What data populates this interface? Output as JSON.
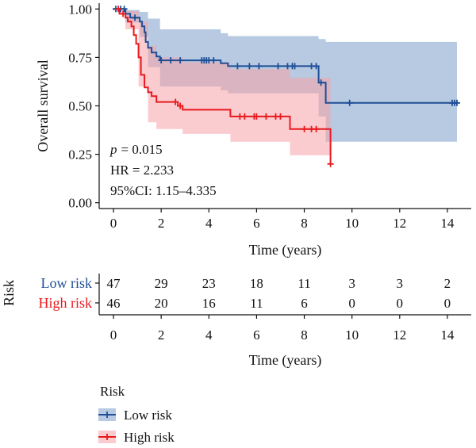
{
  "chart_data": {
    "type": "line",
    "subtype": "kaplan-meier",
    "title": "",
    "xlabel": "Time (years)",
    "ylabel": "Overall survival",
    "xlim": [
      -0.6,
      15
    ],
    "ylim": [
      -0.03,
      1.03
    ],
    "xticks": [
      0,
      2,
      4,
      6,
      8,
      10,
      12,
      14
    ],
    "yticks": [
      0.0,
      0.25,
      0.5,
      0.75,
      1.0
    ],
    "ytick_labels": [
      "0.00",
      "0.25",
      "0.50",
      "0.75",
      "1.00"
    ],
    "grid": false,
    "annotations": {
      "p_prefix": "p",
      "p_value": "= 0.015",
      "hr": "HR = 2.233",
      "ci": "95%CI: 1.15–4.335"
    },
    "series": [
      {
        "name": "Low risk",
        "color": "#1f4e96",
        "ci_color": "#7b9fc9",
        "steps": [
          [
            0,
            1.0
          ],
          [
            0.5,
            0.975
          ],
          [
            0.7,
            0.955
          ],
          [
            1.1,
            0.935
          ],
          [
            1.2,
            0.91
          ],
          [
            1.3,
            0.88
          ],
          [
            1.35,
            0.83
          ],
          [
            1.45,
            0.8
          ],
          [
            1.6,
            0.775
          ],
          [
            1.8,
            0.755
          ],
          [
            1.95,
            0.735
          ],
          [
            4.5,
            0.72
          ],
          [
            4.8,
            0.705
          ],
          [
            8.6,
            0.62
          ],
          [
            8.9,
            0.515
          ],
          [
            14.4,
            0.515
          ]
        ],
        "ci_upper": [
          [
            0,
            1.0
          ],
          [
            0.5,
            0.995
          ],
          [
            1.1,
            0.985
          ],
          [
            1.45,
            0.95
          ],
          [
            1.95,
            0.895
          ],
          [
            4.5,
            0.875
          ],
          [
            4.8,
            0.86
          ],
          [
            8.6,
            0.845
          ],
          [
            8.9,
            0.83
          ],
          [
            14.4,
            0.83
          ]
        ],
        "ci_lower": [
          [
            0,
            1.0
          ],
          [
            0.5,
            0.93
          ],
          [
            1.1,
            0.855
          ],
          [
            1.45,
            0.7
          ],
          [
            1.95,
            0.6
          ],
          [
            4.5,
            0.58
          ],
          [
            4.8,
            0.565
          ],
          [
            8.6,
            0.445
          ],
          [
            8.9,
            0.315
          ],
          [
            14.4,
            0.315
          ]
        ],
        "censored": [
          0.1,
          0.3,
          0.45,
          0.9,
          2.0,
          2.4,
          2.8,
          3.7,
          3.8,
          3.9,
          4.0,
          4.2,
          5.2,
          5.7,
          6.1,
          6.9,
          7.3,
          7.5,
          7.6,
          8.3,
          8.5,
          8.7,
          9.9,
          14.2,
          14.3,
          14.4
        ]
      },
      {
        "name": "High risk",
        "color": "#e8191e",
        "ci_color": "#f7a3a7",
        "steps": [
          [
            0,
            1.0
          ],
          [
            0.25,
            0.975
          ],
          [
            0.5,
            0.955
          ],
          [
            0.6,
            0.935
          ],
          [
            0.75,
            0.91
          ],
          [
            0.85,
            0.865
          ],
          [
            0.95,
            0.82
          ],
          [
            1.05,
            0.75
          ],
          [
            1.15,
            0.66
          ],
          [
            1.3,
            0.595
          ],
          [
            1.45,
            0.57
          ],
          [
            1.6,
            0.55
          ],
          [
            1.8,
            0.52
          ],
          [
            2.7,
            0.5
          ],
          [
            2.9,
            0.48
          ],
          [
            4.9,
            0.445
          ],
          [
            7.4,
            0.38
          ],
          [
            9.1,
            0.2
          ]
        ],
        "ci_upper": [
          [
            0,
            1.0
          ],
          [
            0.5,
            0.99
          ],
          [
            1.05,
            0.935
          ],
          [
            1.45,
            0.81
          ],
          [
            1.8,
            0.75
          ],
          [
            2.9,
            0.725
          ],
          [
            4.9,
            0.69
          ],
          [
            7.4,
            0.645
          ],
          [
            9.1,
            0.58
          ]
        ],
        "ci_lower": [
          [
            0,
            1.0
          ],
          [
            0.5,
            0.895
          ],
          [
            1.05,
            0.6
          ],
          [
            1.45,
            0.415
          ],
          [
            1.8,
            0.38
          ],
          [
            2.9,
            0.355
          ],
          [
            4.9,
            0.315
          ],
          [
            7.4,
            0.245
          ],
          [
            9.1,
            0.045
          ]
        ],
        "censored": [
          0.2,
          0.4,
          2.6,
          2.8,
          5.3,
          5.5,
          5.9,
          6.0,
          6.4,
          6.8,
          7.0,
          8.0,
          8.3,
          8.5,
          9.1
        ]
      }
    ],
    "risk_table": {
      "title": "Risk",
      "xlabel": "Time (years)",
      "times": [
        0,
        2,
        4,
        6,
        8,
        10,
        12,
        14
      ],
      "time_labels": [
        "0",
        "2",
        "4",
        "6",
        "8",
        "10",
        "12",
        "14"
      ],
      "rows": [
        {
          "label": "Low risk",
          "color": "#1f4e96",
          "counts": [
            "47",
            "29",
            "23",
            "18",
            "11",
            "3",
            "3",
            "2"
          ]
        },
        {
          "label": "High risk",
          "color": "#e8191e",
          "counts": [
            "46",
            "20",
            "16",
            "11",
            "6",
            "0",
            "0",
            "0"
          ]
        }
      ]
    },
    "legend": {
      "title": "Risk",
      "position": "bottom-left",
      "items": [
        {
          "label": "Low risk",
          "color": "#1f4e96",
          "ci_color": "#7b9fc9"
        },
        {
          "label": "High risk",
          "color": "#e8191e",
          "ci_color": "#f7a3a7"
        }
      ]
    }
  }
}
